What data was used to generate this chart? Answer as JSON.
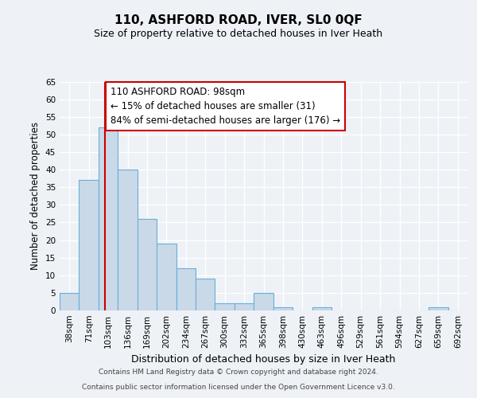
{
  "title1": "110, ASHFORD ROAD, IVER, SL0 0QF",
  "title2": "Size of property relative to detached houses in Iver Heath",
  "xlabel": "Distribution of detached houses by size in Iver Heath",
  "ylabel": "Number of detached properties",
  "bin_labels": [
    "38sqm",
    "71sqm",
    "103sqm",
    "136sqm",
    "169sqm",
    "202sqm",
    "234sqm",
    "267sqm",
    "300sqm",
    "332sqm",
    "365sqm",
    "398sqm",
    "430sqm",
    "463sqm",
    "496sqm",
    "529sqm",
    "561sqm",
    "594sqm",
    "627sqm",
    "659sqm",
    "692sqm"
  ],
  "bar_values": [
    5,
    37,
    52,
    40,
    26,
    19,
    12,
    9,
    2,
    2,
    5,
    1,
    0,
    1,
    0,
    0,
    0,
    0,
    0,
    1,
    0
  ],
  "bar_color": "#c9d9e8",
  "bar_edge_color": "#6aaed6",
  "red_line_x": 1.85,
  "annotation_text": "110 ASHFORD ROAD: 98sqm\n← 15% of detached houses are smaller (31)\n84% of semi-detached houses are larger (176) →",
  "annotation_box_color": "#ffffff",
  "annotation_box_edge": "#cc0000",
  "footer_line1": "Contains HM Land Registry data © Crown copyright and database right 2024.",
  "footer_line2": "Contains public sector information licensed under the Open Government Licence v3.0.",
  "ylim": [
    0,
    65
  ],
  "yticks": [
    0,
    5,
    10,
    15,
    20,
    25,
    30,
    35,
    40,
    45,
    50,
    55,
    60,
    65
  ],
  "background_color": "#eef2f7",
  "axes_background": "#eef2f7",
  "title1_fontsize": 11,
  "title2_fontsize": 9,
  "ylabel_fontsize": 8.5,
  "xlabel_fontsize": 9,
  "tick_fontsize": 7.5,
  "footer_fontsize": 6.5,
  "annot_fontsize": 8.5
}
